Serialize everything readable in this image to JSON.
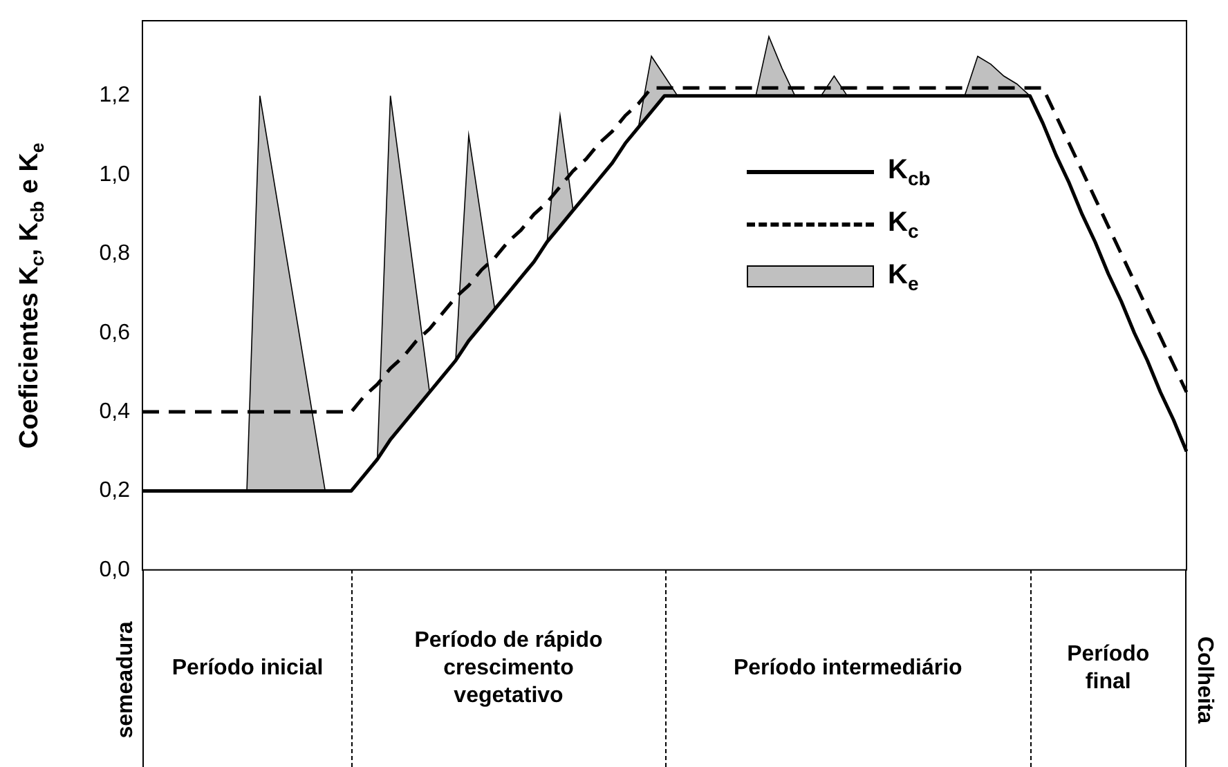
{
  "chart_data": {
    "type": "line",
    "ylabel": "Coeficientes K$_{c}$, K$_{cb}$ e K$_{e}$",
    "categories": [
      null,
      null,
      null,
      null,
      null,
      null,
      null,
      null,
      null,
      null,
      null,
      null,
      null,
      null,
      null,
      null,
      null,
      null,
      null,
      null,
      null,
      null,
      null,
      null,
      null,
      null,
      null,
      null,
      null,
      null,
      null,
      null,
      null,
      null,
      null,
      null,
      null,
      null,
      null,
      null,
      null,
      null,
      null,
      null,
      null,
      null,
      null,
      null,
      null,
      null,
      null,
      null,
      null,
      null,
      null,
      null,
      null,
      null,
      null,
      null,
      null,
      null,
      null,
      null,
      null,
      null,
      null,
      null,
      null,
      null,
      null,
      null,
      null,
      null,
      null,
      null,
      null,
      null,
      null,
      null,
      null
    ],
    "ylim": [
      0,
      1.39
    ],
    "yticks": [
      {
        "value": 0,
        "label": "0,0"
      },
      {
        "value": 0.2,
        "label": "0,2"
      },
      {
        "value": 0.4,
        "label": "0,4"
      },
      {
        "value": 0.6,
        "label": "0,6"
      },
      {
        "value": 0.8,
        "label": "0,8"
      },
      {
        "value": 1.0,
        "label": "1,0"
      },
      {
        "value": 1.2,
        "label": "1,2"
      }
    ],
    "tick_labels": "y",
    "grid": false,
    "legend": "top right",
    "series": [
      {
        "name": "K$_{cb}$",
        "type": "line",
        "line_style": "solid",
        "color": "#000000",
        "values": [
          0.2,
          0.2,
          0.2,
          0.2,
          0.2,
          0.2,
          0.2,
          0.2,
          0.2,
          0.2,
          0.2,
          0.2,
          0.2,
          0.2,
          0.2,
          0.2,
          0.2,
          0.24,
          0.28,
          0.33,
          0.37,
          0.41,
          0.45,
          0.49,
          0.53,
          0.58,
          0.62,
          0.66,
          0.7,
          0.74,
          0.78,
          0.83,
          0.87,
          0.91,
          0.95,
          0.99,
          1.03,
          1.08,
          1.12,
          1.16,
          1.2,
          1.2,
          1.2,
          1.2,
          1.2,
          1.2,
          1.2,
          1.2,
          1.2,
          1.2,
          1.2,
          1.2,
          1.2,
          1.2,
          1.2,
          1.2,
          1.2,
          1.2,
          1.2,
          1.2,
          1.2,
          1.2,
          1.2,
          1.2,
          1.2,
          1.2,
          1.2,
          1.2,
          1.2,
          1.13,
          1.05,
          0.98,
          0.9,
          0.83,
          0.75,
          0.68,
          0.6,
          0.53,
          0.45,
          0.38,
          0.3
        ]
      },
      {
        "name": "K$_{c}$",
        "type": "line",
        "line_style": "dashed",
        "color": "#000000",
        "values": [
          0.4,
          0.4,
          0.4,
          0.4,
          0.4,
          0.4,
          0.4,
          0.4,
          0.4,
          0.4,
          0.4,
          0.4,
          0.4,
          0.4,
          0.4,
          0.4,
          0.4,
          0.44,
          0.47,
          0.51,
          0.54,
          0.58,
          0.61,
          0.65,
          0.69,
          0.72,
          0.76,
          0.79,
          0.83,
          0.86,
          0.9,
          0.93,
          0.97,
          1.01,
          1.04,
          1.08,
          1.11,
          1.15,
          1.18,
          1.22,
          1.22,
          1.22,
          1.22,
          1.22,
          1.22,
          1.22,
          1.22,
          1.22,
          1.22,
          1.22,
          1.22,
          1.22,
          1.22,
          1.22,
          1.22,
          1.22,
          1.22,
          1.22,
          1.22,
          1.22,
          1.22,
          1.22,
          1.22,
          1.22,
          1.22,
          1.22,
          1.22,
          1.22,
          1.22,
          1.22,
          1.15,
          1.08,
          1.01,
          0.94,
          0.87,
          0.8,
          0.73,
          0.66,
          0.59,
          0.52,
          0.45
        ]
      },
      {
        "name": "K$_{e}$",
        "type": "area",
        "color": "#c0c0c0",
        "values": [
          null,
          null,
          null,
          null,
          null,
          null,
          null,
          null,
          0.2,
          1.2,
          1.0,
          0.8,
          0.6,
          0.4,
          0.2,
          null,
          null,
          null,
          0.28,
          1.2,
          0.95,
          0.7,
          0.45,
          null,
          0.53,
          1.1,
          0.88,
          0.66,
          null,
          null,
          null,
          0.83,
          1.15,
          0.91,
          null,
          null,
          null,
          null,
          1.12,
          1.3,
          1.25,
          1.2,
          null,
          null,
          null,
          null,
          null,
          1.2,
          1.35,
          1.27,
          1.2,
          null,
          1.2,
          1.25,
          1.2,
          null,
          null,
          null,
          null,
          null,
          null,
          null,
          null,
          1.2,
          1.3,
          1.28,
          1.25,
          1.23,
          1.2,
          null,
          null,
          null,
          null,
          null,
          null,
          null,
          null,
          null,
          null,
          null,
          null
        ]
      }
    ],
    "annotations": [
      "semeadura",
      "Período inicial",
      "Período de rápido crescimento vegetativo",
      "Período intermediário",
      "Período final",
      "Colheita"
    ]
  }
}
